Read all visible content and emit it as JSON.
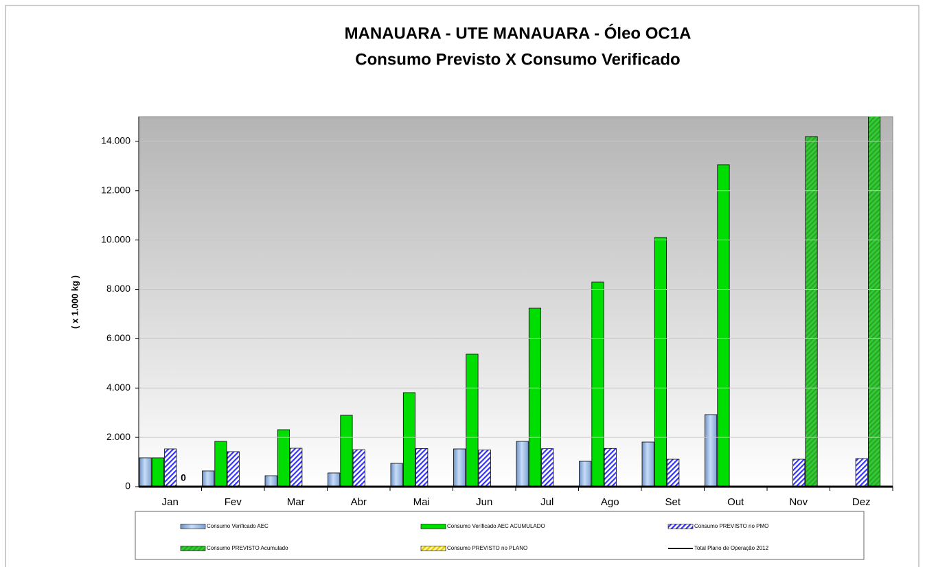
{
  "chart_data": {
    "type": "bar",
    "title": "MANAUARA - UTE MANAUARA - Óleo OC1A",
    "subtitle": "Consumo Previsto X Consumo Verificado",
    "y_label": "( x 1.000 kg )",
    "categories": [
      "Jan",
      "Fev",
      "Mar",
      "Abr",
      "Mai",
      "Jun",
      "Jul",
      "Ago",
      "Set",
      "Out",
      "Nov",
      "Dez"
    ],
    "ylim": [
      0,
      15000
    ],
    "yticks": [
      0,
      {
        "value": 2000,
        "label": "2.000"
      },
      {
        "value": 4000,
        "label": "4.000"
      },
      {
        "value": 6000,
        "label": "6.000"
      },
      {
        "value": 8000,
        "label": "8.000"
      },
      {
        "value": 10000,
        "label": "10.000"
      },
      {
        "value": 12000,
        "label": "12.000"
      },
      {
        "value": 14000,
        "label": "14.000"
      }
    ],
    "grid": true,
    "legend": "bottom",
    "series": [
      {
        "name": "Consumo Verificado AEC",
        "color": "#9dbde9",
        "values": [
          1170,
          640,
          445,
          557,
          946,
          1531,
          1837,
          1030,
          1809,
          2922,
          null,
          null
        ]
      },
      {
        "name": "Consumo Verificado AEC ACUMULADO",
        "color": "#00dd00",
        "values": [
          1170,
          1837,
          2310,
          2895,
          3813,
          5372,
          7236,
          8294,
          10103,
          13053,
          null,
          null
        ]
      },
      {
        "name": "Consumo PREVISTO no PMO",
        "color": "#3333ff",
        "pattern": "hatch",
        "values": [
          1531,
          1420,
          1559,
          1500,
          1545,
          1490,
          1540,
          1550,
          1113,
          null,
          1113,
          1140
        ]
      },
      {
        "name": "Consumo PREVISTO Acumulado",
        "color": "#2aa52a",
        "pattern": "hatch",
        "values": [
          0,
          null,
          null,
          null,
          null,
          null,
          null,
          null,
          null,
          null,
          14194,
          15300
        ],
        "value_labels": [
          "0",
          null,
          null,
          null,
          null,
          null,
          null,
          null,
          null,
          null,
          null,
          null
        ]
      },
      {
        "name": "Consumo PREVISTO no PLANO",
        "color": "#e6c800",
        "pattern": "hatch",
        "values": [
          null,
          null,
          null,
          null,
          null,
          null,
          null,
          null,
          null,
          null,
          null,
          null
        ]
      },
      {
        "name": "Total Plano de Operação 2012",
        "color": "#000000",
        "type": "line",
        "values": [
          null,
          null,
          null,
          null,
          null,
          null,
          null,
          null,
          null,
          null,
          null,
          null
        ]
      }
    ]
  }
}
